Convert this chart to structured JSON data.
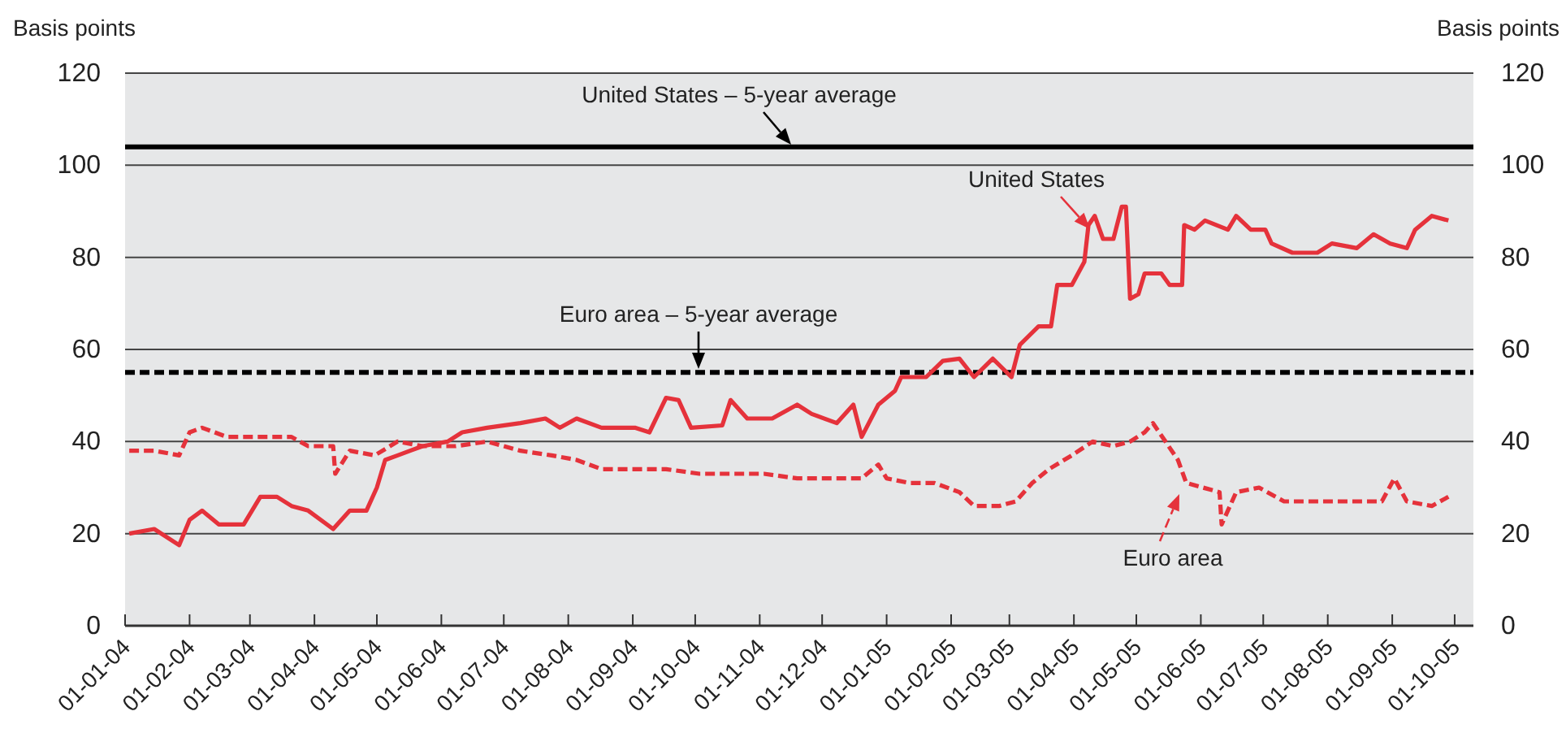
{
  "chart_data": {
    "type": "line",
    "ylabel": "Basis points",
    "y2label": "Basis points",
    "xlim": [
      "2004-01-01",
      "2005-10-10"
    ],
    "xticks": [
      {
        "value": "2004-01-01",
        "label": "01-01-04"
      },
      {
        "value": "2004-02-01",
        "label": "01-02-04"
      },
      {
        "value": "2004-03-01",
        "label": "01-03-04"
      },
      {
        "value": "2004-04-01",
        "label": "01-04-04"
      },
      {
        "value": "2004-05-01",
        "label": "01-05-04"
      },
      {
        "value": "2004-06-01",
        "label": "01-06-04"
      },
      {
        "value": "2004-07-01",
        "label": "01-07-04"
      },
      {
        "value": "2004-08-01",
        "label": "01-08-04"
      },
      {
        "value": "2004-09-01",
        "label": "01-09-04"
      },
      {
        "value": "2004-10-01",
        "label": "01-10-04"
      },
      {
        "value": "2004-11-01",
        "label": "01-11-04"
      },
      {
        "value": "2004-12-01",
        "label": "01-12-04"
      },
      {
        "value": "2005-01-01",
        "label": "01-01-05"
      },
      {
        "value": "2005-02-01",
        "label": "01-02-05"
      },
      {
        "value": "2005-03-01",
        "label": "01-03-05"
      },
      {
        "value": "2005-04-01",
        "label": "01-04-05"
      },
      {
        "value": "2005-05-01",
        "label": "01-05-05"
      },
      {
        "value": "2005-06-01",
        "label": "01-06-05"
      },
      {
        "value": "2005-07-01",
        "label": "01-07-05"
      },
      {
        "value": "2005-08-01",
        "label": "01-08-05"
      },
      {
        "value": "2005-09-01",
        "label": "01-09-05"
      },
      {
        "value": "2005-10-01",
        "label": "01-10-05"
      }
    ],
    "ylim": [
      0,
      120
    ],
    "yticks": [
      0,
      20,
      40,
      60,
      80,
      100,
      120
    ],
    "y2lim": [
      0,
      120
    ],
    "y2ticks": [
      0,
      20,
      40,
      60,
      80,
      100,
      120
    ],
    "grid": "y",
    "series": [
      {
        "name": "United States",
        "color": "#e5323b",
        "line_style": "solid",
        "x": [
          "2004-01-03",
          "2004-01-15",
          "2004-01-27",
          "2004-02-01",
          "2004-02-07",
          "2004-02-15",
          "2004-02-27",
          "2004-03-06",
          "2004-03-14",
          "2004-03-21",
          "2004-03-29",
          "2004-04-10",
          "2004-04-18",
          "2004-04-26",
          "2004-05-01",
          "2004-05-05",
          "2004-05-11",
          "2004-05-23",
          "2004-06-04",
          "2004-06-11",
          "2004-06-23",
          "2004-07-09",
          "2004-07-21",
          "2004-07-28",
          "2004-08-05",
          "2004-08-17",
          "2004-09-02",
          "2004-09-09",
          "2004-09-17",
          "2004-09-23",
          "2004-09-29",
          "2004-10-14",
          "2004-10-18",
          "2004-10-26",
          "2004-11-07",
          "2004-11-19",
          "2004-11-26",
          "2004-12-08",
          "2004-12-16",
          "2004-12-20",
          "2004-12-28",
          "2005-01-05",
          "2005-01-08",
          "2005-01-20",
          "2005-01-28",
          "2005-02-05",
          "2005-02-12",
          "2005-02-21",
          "2005-03-02",
          "2005-03-06",
          "2005-03-15",
          "2005-03-21",
          "2005-03-24",
          "2005-03-31",
          "2005-04-06",
          "2005-04-08",
          "2005-04-11",
          "2005-04-15",
          "2005-04-20",
          "2005-04-24",
          "2005-04-26",
          "2005-04-28",
          "2005-05-02",
          "2005-05-05",
          "2005-05-13",
          "2005-05-17",
          "2005-05-23",
          "2005-05-24",
          "2005-05-29",
          "2005-06-03",
          "2005-06-14",
          "2005-06-18",
          "2005-06-25",
          "2005-07-02",
          "2005-07-05",
          "2005-07-15",
          "2005-07-27",
          "2005-08-03",
          "2005-08-15",
          "2005-08-23",
          "2005-08-31",
          "2005-09-08",
          "2005-09-12",
          "2005-09-20",
          "2005-09-28"
        ],
        "values": [
          20,
          21,
          17.5,
          23,
          25,
          22,
          22,
          28,
          28,
          26,
          25,
          21,
          25,
          25,
          30,
          36,
          37,
          39,
          40,
          42,
          43,
          44,
          45,
          43,
          45,
          43,
          43,
          42,
          49.5,
          49,
          43,
          43.5,
          49,
          45,
          45,
          48,
          46,
          44,
          48,
          41,
          48,
          51,
          54,
          54,
          57.5,
          58,
          54,
          58,
          54,
          61,
          65,
          65,
          74,
          74,
          79,
          87,
          89,
          84,
          84,
          91,
          91,
          71,
          72,
          76.5,
          76.5,
          74,
          74,
          87,
          86,
          88,
          86,
          89,
          86,
          86,
          83,
          81,
          81,
          83,
          82,
          85,
          83,
          82,
          86,
          89,
          88
        ]
      },
      {
        "name": "Euro area",
        "color": "#e5323b",
        "line_style": "dashed",
        "x": [
          "2004-01-03",
          "2004-01-15",
          "2004-01-27",
          "2004-02-01",
          "2004-02-07",
          "2004-02-19",
          "2004-03-06",
          "2004-03-21",
          "2004-03-29",
          "2004-04-10",
          "2004-04-11",
          "2004-04-18",
          "2004-04-30",
          "2004-05-11",
          "2004-05-23",
          "2004-06-08",
          "2004-06-23",
          "2004-07-09",
          "2004-07-24",
          "2004-08-05",
          "2004-08-17",
          "2004-09-02",
          "2004-09-17",
          "2004-10-03",
          "2004-10-18",
          "2004-11-03",
          "2004-11-19",
          "2004-12-04",
          "2004-12-20",
          "2004-12-28",
          "2005-01-01",
          "2005-01-12",
          "2005-01-24",
          "2005-02-05",
          "2005-02-12",
          "2005-02-24",
          "2005-03-04",
          "2005-03-12",
          "2005-03-20",
          "2005-03-31",
          "2005-04-10",
          "2005-04-20",
          "2005-04-28",
          "2005-05-05",
          "2005-05-09",
          "2005-05-15",
          "2005-05-21",
          "2005-05-25",
          "2005-06-02",
          "2005-06-10",
          "2005-06-11",
          "2005-06-18",
          "2005-06-29",
          "2005-07-11",
          "2005-07-27",
          "2005-08-12",
          "2005-08-27",
          "2005-09-02",
          "2005-09-08",
          "2005-09-20",
          "2005-09-28"
        ],
        "values": [
          38,
          38,
          37,
          42,
          43,
          41,
          41,
          41,
          39,
          39,
          33,
          38,
          37,
          40,
          39,
          39,
          40,
          38,
          37,
          36,
          34,
          34,
          34,
          33,
          33,
          33,
          32,
          32,
          32,
          35,
          32,
          31,
          31,
          29,
          26,
          26,
          27,
          31,
          34,
          37,
          40,
          39,
          40,
          42,
          44,
          40,
          36,
          31,
          30,
          29,
          22,
          29,
          30,
          27,
          27,
          27,
          27,
          32,
          27,
          26,
          28
        ]
      }
    ],
    "ref_lines": [
      {
        "axis": "y",
        "value": 104,
        "label": "United States – 5-year average",
        "color": "#000000",
        "line_style": "solid"
      },
      {
        "axis": "y",
        "value": 55,
        "label": "Euro area – 5-year average",
        "color": "#000000",
        "line_style": "dashed"
      }
    ]
  }
}
